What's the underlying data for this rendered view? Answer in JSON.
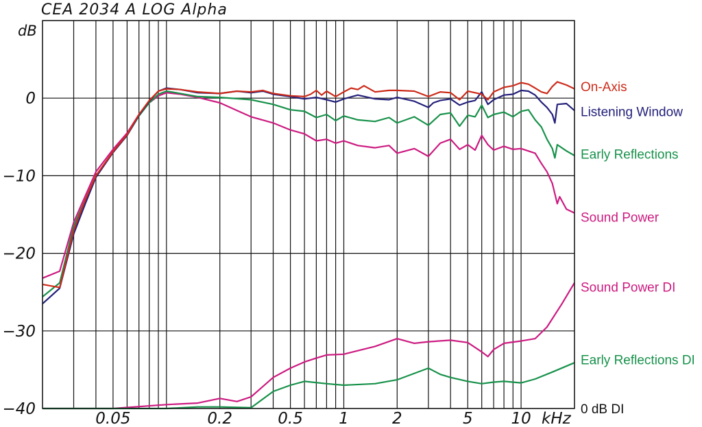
{
  "chart_data": {
    "type": "line",
    "title": "CEA 2034 A   LOG   Alpha",
    "ylabel": "dB",
    "xunit_label": "kHz",
    "xscale": "log",
    "xlim": [
      0.02,
      20
    ],
    "ylim": [
      -40,
      10
    ],
    "grid": true,
    "y_ticks": [
      {
        "value": 0,
        "label": "0"
      },
      {
        "value": -10,
        "label": "−10"
      },
      {
        "value": -20,
        "label": "−20"
      },
      {
        "value": -30,
        "label": "−30"
      },
      {
        "value": -40,
        "label": "−40"
      }
    ],
    "x_ticks": [
      {
        "value": 0.05,
        "label": "0.05"
      },
      {
        "value": 0.2,
        "label": "0.2"
      },
      {
        "value": 0.5,
        "label": "0.5"
      },
      {
        "value": 1,
        "label": "1"
      },
      {
        "value": 2,
        "label": "2"
      },
      {
        "value": 5,
        "label": "5"
      },
      {
        "value": 10,
        "label": "10"
      }
    ],
    "x_gridlines": [
      0.02,
      0.03,
      0.04,
      0.05,
      0.06,
      0.07,
      0.08,
      0.09,
      0.1,
      0.2,
      0.3,
      0.4,
      0.5,
      0.6,
      0.7,
      0.8,
      0.9,
      1,
      2,
      3,
      4,
      5,
      6,
      7,
      8,
      9,
      10,
      20
    ],
    "y_gridlines": [
      10,
      0,
      -10,
      -20,
      -30,
      -40
    ],
    "legend_placement": "right",
    "series": [
      {
        "name": "Sound Power DI",
        "color": "#cc1a80",
        "label_y": -24.3,
        "points": [
          [
            0.02,
            -40
          ],
          [
            0.05,
            -40
          ],
          [
            0.1,
            -39.5
          ],
          [
            0.15,
            -39.3
          ],
          [
            0.2,
            -38.7
          ],
          [
            0.25,
            -39.1
          ],
          [
            0.3,
            -38.5
          ],
          [
            0.4,
            -36
          ],
          [
            0.5,
            -34.8
          ],
          [
            0.6,
            -34
          ],
          [
            0.7,
            -33.5
          ],
          [
            0.8,
            -33.1
          ],
          [
            1,
            -33
          ],
          [
            1.5,
            -32
          ],
          [
            2,
            -31
          ],
          [
            2.5,
            -31.6
          ],
          [
            3,
            -31.4
          ],
          [
            4,
            -31.2
          ],
          [
            5,
            -31.5
          ],
          [
            6,
            -32.7
          ],
          [
            6.5,
            -33.3
          ],
          [
            7,
            -32.4
          ],
          [
            8,
            -31.6
          ],
          [
            10,
            -31.3
          ],
          [
            12,
            -31
          ],
          [
            14,
            -29.5
          ],
          [
            17,
            -26.5
          ],
          [
            20,
            -23.8
          ]
        ]
      },
      {
        "name": "Early Reflections DI",
        "color": "#17914a",
        "label_y": -33.7,
        "points": [
          [
            0.02,
            -40
          ],
          [
            0.1,
            -40
          ],
          [
            0.15,
            -39.8
          ],
          [
            0.2,
            -39.8
          ],
          [
            0.3,
            -39.9
          ],
          [
            0.4,
            -37.8
          ],
          [
            0.5,
            -37
          ],
          [
            0.6,
            -36.5
          ],
          [
            0.8,
            -36.8
          ],
          [
            1,
            -37
          ],
          [
            1.5,
            -36.8
          ],
          [
            2,
            -36.3
          ],
          [
            3,
            -34.8
          ],
          [
            3.5,
            -35.6
          ],
          [
            4,
            -36
          ],
          [
            5,
            -36.5
          ],
          [
            6,
            -36.8
          ],
          [
            7,
            -36.6
          ],
          [
            8,
            -36.5
          ],
          [
            10,
            -36.7
          ],
          [
            12,
            -36.2
          ],
          [
            15,
            -35.3
          ],
          [
            20,
            -34.1
          ]
        ]
      },
      {
        "name": "Sound Power",
        "color": "#cc1a80",
        "label_y": -15.3,
        "points": [
          [
            0.02,
            -23.2
          ],
          [
            0.025,
            -22.3
          ],
          [
            0.03,
            -16
          ],
          [
            0.035,
            -12.5
          ],
          [
            0.04,
            -9.5
          ],
          [
            0.05,
            -6.6
          ],
          [
            0.06,
            -4.5
          ],
          [
            0.07,
            -2.1
          ],
          [
            0.08,
            -0.6
          ],
          [
            0.09,
            0.3
          ],
          [
            0.1,
            0.7
          ],
          [
            0.12,
            0.5
          ],
          [
            0.15,
            0.1
          ],
          [
            0.2,
            -0.6
          ],
          [
            0.25,
            -1.6
          ],
          [
            0.3,
            -2.4
          ],
          [
            0.4,
            -3.2
          ],
          [
            0.5,
            -4.1
          ],
          [
            0.6,
            -4.6
          ],
          [
            0.7,
            -5.5
          ],
          [
            0.8,
            -5.3
          ],
          [
            0.9,
            -5.8
          ],
          [
            1,
            -5.5
          ],
          [
            1.2,
            -6.1
          ],
          [
            1.5,
            -6.4
          ],
          [
            1.8,
            -6.1
          ],
          [
            2,
            -7.1
          ],
          [
            2.5,
            -6.5
          ],
          [
            3,
            -7.5
          ],
          [
            3.5,
            -5.8
          ],
          [
            4,
            -5.3
          ],
          [
            4.5,
            -6.6
          ],
          [
            5,
            -6
          ],
          [
            5.5,
            -6.7
          ],
          [
            6,
            -4.8
          ],
          [
            6.5,
            -6
          ],
          [
            7,
            -6.7
          ],
          [
            8,
            -6.2
          ],
          [
            9,
            -6.6
          ],
          [
            10,
            -6.5
          ],
          [
            12,
            -7.1
          ],
          [
            13,
            -8.4
          ],
          [
            14,
            -9.5
          ],
          [
            15,
            -11
          ],
          [
            16,
            -13.6
          ],
          [
            16.5,
            -12.7
          ],
          [
            18,
            -14.3
          ],
          [
            20,
            -14.8
          ]
        ]
      },
      {
        "name": "Early Reflections",
        "color": "#17914a",
        "label_y": -7.2,
        "points": [
          [
            0.02,
            -25.6
          ],
          [
            0.025,
            -23.8
          ],
          [
            0.03,
            -16.5
          ],
          [
            0.035,
            -13
          ],
          [
            0.04,
            -10
          ],
          [
            0.05,
            -7
          ],
          [
            0.06,
            -4.8
          ],
          [
            0.07,
            -2.3
          ],
          [
            0.08,
            -0.6
          ],
          [
            0.09,
            0.5
          ],
          [
            0.1,
            0.9
          ],
          [
            0.12,
            0.6
          ],
          [
            0.15,
            0.2
          ],
          [
            0.2,
            0.1
          ],
          [
            0.3,
            -0.2
          ],
          [
            0.4,
            -0.8
          ],
          [
            0.5,
            -1.5
          ],
          [
            0.6,
            -1.7
          ],
          [
            0.7,
            -2.5
          ],
          [
            0.8,
            -2.1
          ],
          [
            0.9,
            -2.9
          ],
          [
            1,
            -2.3
          ],
          [
            1.2,
            -2.8
          ],
          [
            1.5,
            -3
          ],
          [
            1.8,
            -2.5
          ],
          [
            2,
            -3.2
          ],
          [
            2.5,
            -2.4
          ],
          [
            3,
            -3.5
          ],
          [
            3.5,
            -2.1
          ],
          [
            4,
            -1.9
          ],
          [
            4.5,
            -3.6
          ],
          [
            5,
            -2.2
          ],
          [
            5.5,
            -2.4
          ],
          [
            6,
            -0.9
          ],
          [
            6.5,
            -2.5
          ],
          [
            7,
            -2.1
          ],
          [
            8,
            -1.8
          ],
          [
            9,
            -2.4
          ],
          [
            10,
            -1.7
          ],
          [
            11,
            -1.5
          ],
          [
            12,
            -2.8
          ],
          [
            13,
            -3.7
          ],
          [
            14,
            -5.3
          ],
          [
            15,
            -6.5
          ],
          [
            15.5,
            -7.7
          ],
          [
            16,
            -6
          ],
          [
            18,
            -6.8
          ],
          [
            20,
            -7.4
          ]
        ]
      },
      {
        "name": "Listening Window",
        "color": "#23207a",
        "label_y": -1.7,
        "points": [
          [
            0.02,
            -26.5
          ],
          [
            0.025,
            -24.5
          ],
          [
            0.03,
            -17.5
          ],
          [
            0.035,
            -13.5
          ],
          [
            0.04,
            -10.2
          ],
          [
            0.05,
            -7
          ],
          [
            0.06,
            -4.8
          ],
          [
            0.07,
            -2.2
          ],
          [
            0.08,
            -0.4
          ],
          [
            0.09,
            0.9
          ],
          [
            0.1,
            1.3
          ],
          [
            0.12,
            1.1
          ],
          [
            0.15,
            0.7
          ],
          [
            0.2,
            0.6
          ],
          [
            0.25,
            0.9
          ],
          [
            0.3,
            0.7
          ],
          [
            0.35,
            0.9
          ],
          [
            0.4,
            0.5
          ],
          [
            0.5,
            0.2
          ],
          [
            0.6,
            -0.1
          ],
          [
            0.7,
            0.1
          ],
          [
            0.8,
            -0.2
          ],
          [
            0.9,
            -0.5
          ],
          [
            1,
            -0.1
          ],
          [
            1.2,
            0.4
          ],
          [
            1.5,
            -0.1
          ],
          [
            1.8,
            -0.2
          ],
          [
            2,
            0.1
          ],
          [
            2.5,
            -0.4
          ],
          [
            3,
            -1.2
          ],
          [
            3.2,
            -0.6
          ],
          [
            3.5,
            -0.3
          ],
          [
            4,
            -0.1
          ],
          [
            4.5,
            -0.9
          ],
          [
            5,
            -0.5
          ],
          [
            5.5,
            -0.3
          ],
          [
            6,
            0.8
          ],
          [
            6.5,
            -0.8
          ],
          [
            7,
            -0.2
          ],
          [
            8,
            0.4
          ],
          [
            9,
            0.5
          ],
          [
            10,
            1
          ],
          [
            11,
            0.9
          ],
          [
            12,
            0.4
          ],
          [
            13,
            -0.5
          ],
          [
            14,
            -1.2
          ],
          [
            15,
            -2.1
          ],
          [
            15.5,
            -3.2
          ],
          [
            16,
            -0.8
          ],
          [
            18,
            -0.7
          ],
          [
            20,
            -1.6
          ]
        ]
      },
      {
        "name": "On-Axis",
        "color": "#cc2b1a",
        "label_y": 1.5,
        "points": [
          [
            0.02,
            -24
          ],
          [
            0.025,
            -24.4
          ],
          [
            0.03,
            -17
          ],
          [
            0.035,
            -13
          ],
          [
            0.04,
            -10
          ],
          [
            0.05,
            -6.9
          ],
          [
            0.06,
            -4.7
          ],
          [
            0.07,
            -2.1
          ],
          [
            0.08,
            -0.3
          ],
          [
            0.09,
            0.9
          ],
          [
            0.1,
            1.2
          ],
          [
            0.12,
            1.1
          ],
          [
            0.15,
            0.8
          ],
          [
            0.2,
            0.6
          ],
          [
            0.25,
            0.9
          ],
          [
            0.3,
            0.8
          ],
          [
            0.35,
            1
          ],
          [
            0.4,
            0.6
          ],
          [
            0.5,
            0.3
          ],
          [
            0.6,
            0.2
          ],
          [
            0.65,
            0.5
          ],
          [
            0.7,
            1
          ],
          [
            0.75,
            0.4
          ],
          [
            0.8,
            0.9
          ],
          [
            0.9,
            0.2
          ],
          [
            1,
            0.8
          ],
          [
            1.1,
            1.3
          ],
          [
            1.2,
            1.1
          ],
          [
            1.3,
            1.6
          ],
          [
            1.5,
            0.8
          ],
          [
            1.8,
            1
          ],
          [
            2,
            1
          ],
          [
            2.5,
            0.9
          ],
          [
            3,
            0.2
          ],
          [
            3.5,
            0.8
          ],
          [
            4,
            0.7
          ],
          [
            4.5,
            -0.2
          ],
          [
            5,
            0.9
          ],
          [
            5.5,
            0.7
          ],
          [
            6,
            0.5
          ],
          [
            6.5,
            -0.2
          ],
          [
            7,
            0.8
          ],
          [
            8,
            1.4
          ],
          [
            9,
            1.6
          ],
          [
            10,
            2
          ],
          [
            11,
            1.8
          ],
          [
            12,
            1.3
          ],
          [
            13,
            0.8
          ],
          [
            14,
            0.6
          ],
          [
            15,
            1.5
          ],
          [
            16,
            2.1
          ],
          [
            18,
            1.7
          ],
          [
            20,
            1.2
          ]
        ]
      }
    ],
    "right_labels": [
      {
        "text": "On-Axis",
        "color": "#cc2b1a"
      },
      {
        "text": "Listening Window",
        "color": "#23207a"
      },
      {
        "text": "Early Reflections",
        "color": "#17914a"
      },
      {
        "text": "Sound Power",
        "color": "#cc1a80"
      },
      {
        "text": "Sound Power DI",
        "color": "#cc1a80"
      },
      {
        "text": "Early Reflections DI",
        "color": "#17914a"
      },
      {
        "text": "0 dB DI",
        "color": "#111111"
      }
    ]
  }
}
